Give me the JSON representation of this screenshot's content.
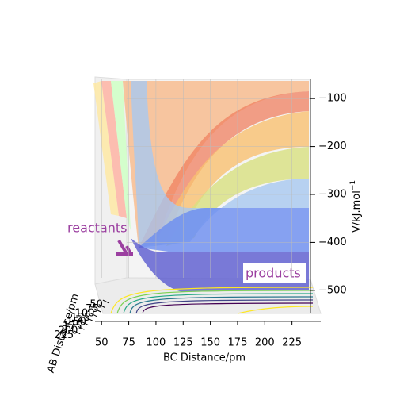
{
  "chart_data": {
    "type": "surface3d",
    "xlabel": "BC Distance/pm",
    "ylabel": "AB Distance/pm",
    "zlabel": {
      "text": "V/kJ.mol",
      "sup": "−1"
    },
    "xlim": [
      44,
      242
    ],
    "xticks": [
      50,
      75,
      100,
      125,
      150,
      175,
      200,
      225
    ],
    "ylim": [
      45,
      240
    ],
    "yticks": [
      50,
      75,
      100,
      125,
      150,
      175,
      200,
      225
    ],
    "zlim": [
      -540,
      -60
    ],
    "zticks": [
      {
        "value": -100,
        "label": "−100"
      },
      {
        "value": -200,
        "label": "−200"
      },
      {
        "value": -300,
        "label": "−300"
      },
      {
        "value": -400,
        "label": "−400"
      },
      {
        "value": -500,
        "label": "−500"
      }
    ],
    "annotations": [
      "reactants",
      "products"
    ]
  }
}
